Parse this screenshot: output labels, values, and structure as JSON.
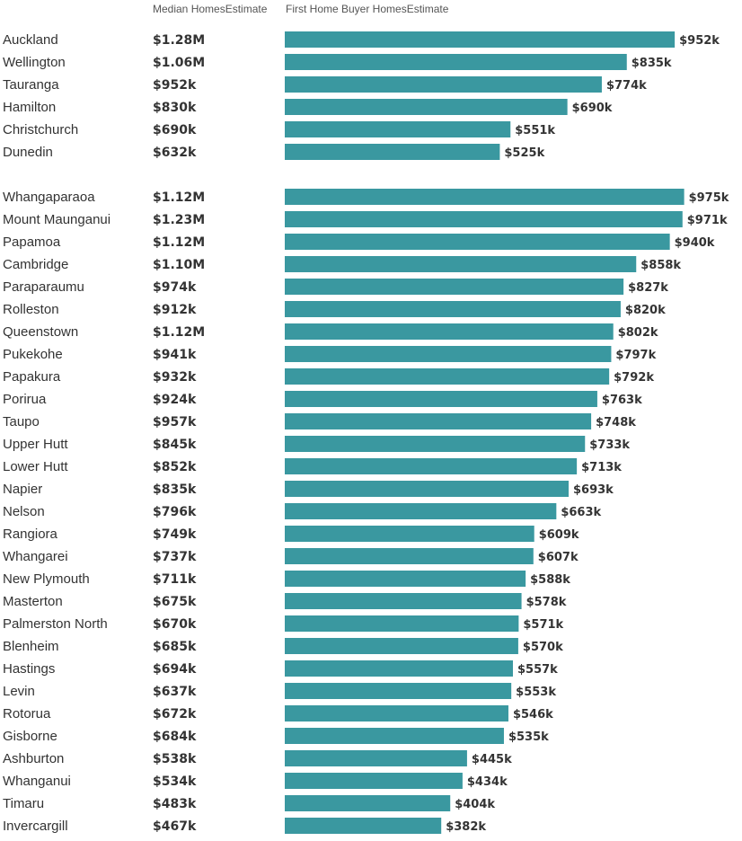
{
  "header": {
    "median_col": "Median HomesEstimate",
    "fhb_col": "First Home Buyer HomesEstimate"
  },
  "colors": {
    "bar": "#3a98a0",
    "text": "#333333"
  },
  "chart_data": {
    "type": "bar",
    "orientation": "horizontal",
    "value_unit": "$k",
    "xlim": [
      0,
      1000
    ],
    "groups": [
      {
        "rows": [
          {
            "city": "Auckland",
            "median": "$1.28M",
            "fhb": 952,
            "fhb_label": "$952k"
          },
          {
            "city": "Wellington",
            "median": "$1.06M",
            "fhb": 835,
            "fhb_label": "$835k"
          },
          {
            "city": "Tauranga",
            "median": "$952k",
            "fhb": 774,
            "fhb_label": "$774k"
          },
          {
            "city": "Hamilton",
            "median": "$830k",
            "fhb": 690,
            "fhb_label": "$690k"
          },
          {
            "city": "Christchurch",
            "median": "$690k",
            "fhb": 551,
            "fhb_label": "$551k"
          },
          {
            "city": "Dunedin",
            "median": "$632k",
            "fhb": 525,
            "fhb_label": "$525k"
          }
        ]
      },
      {
        "rows": [
          {
            "city": "Whangaparaoa",
            "median": "$1.12M",
            "fhb": 975,
            "fhb_label": "$975k"
          },
          {
            "city": "Mount Maunganui",
            "median": "$1.23M",
            "fhb": 971,
            "fhb_label": "$971k"
          },
          {
            "city": "Papamoa",
            "median": "$1.12M",
            "fhb": 940,
            "fhb_label": "$940k"
          },
          {
            "city": "Cambridge",
            "median": "$1.10M",
            "fhb": 858,
            "fhb_label": "$858k"
          },
          {
            "city": "Paraparaumu",
            "median": "$974k",
            "fhb": 827,
            "fhb_label": "$827k"
          },
          {
            "city": "Rolleston",
            "median": "$912k",
            "fhb": 820,
            "fhb_label": "$820k"
          },
          {
            "city": "Queenstown",
            "median": "$1.12M",
            "fhb": 802,
            "fhb_label": "$802k"
          },
          {
            "city": "Pukekohe",
            "median": "$941k",
            "fhb": 797,
            "fhb_label": "$797k"
          },
          {
            "city": "Papakura",
            "median": "$932k",
            "fhb": 792,
            "fhb_label": "$792k"
          },
          {
            "city": "Porirua",
            "median": "$924k",
            "fhb": 763,
            "fhb_label": "$763k"
          },
          {
            "city": "Taupo",
            "median": "$957k",
            "fhb": 748,
            "fhb_label": "$748k"
          },
          {
            "city": "Upper Hutt",
            "median": "$845k",
            "fhb": 733,
            "fhb_label": "$733k"
          },
          {
            "city": "Lower Hutt",
            "median": "$852k",
            "fhb": 713,
            "fhb_label": "$713k"
          },
          {
            "city": "Napier",
            "median": "$835k",
            "fhb": 693,
            "fhb_label": "$693k"
          },
          {
            "city": "Nelson",
            "median": "$796k",
            "fhb": 663,
            "fhb_label": "$663k"
          },
          {
            "city": "Rangiora",
            "median": "$749k",
            "fhb": 609,
            "fhb_label": "$609k"
          },
          {
            "city": "Whangarei",
            "median": "$737k",
            "fhb": 607,
            "fhb_label": "$607k"
          },
          {
            "city": "New Plymouth",
            "median": "$711k",
            "fhb": 588,
            "fhb_label": "$588k"
          },
          {
            "city": "Masterton",
            "median": "$675k",
            "fhb": 578,
            "fhb_label": "$578k"
          },
          {
            "city": "Palmerston North",
            "median": "$670k",
            "fhb": 571,
            "fhb_label": "$571k"
          },
          {
            "city": "Blenheim",
            "median": "$685k",
            "fhb": 570,
            "fhb_label": "$570k"
          },
          {
            "city": "Hastings",
            "median": "$694k",
            "fhb": 557,
            "fhb_label": "$557k"
          },
          {
            "city": "Levin",
            "median": "$637k",
            "fhb": 553,
            "fhb_label": "$553k"
          },
          {
            "city": "Rotorua",
            "median": "$672k",
            "fhb": 546,
            "fhb_label": "$546k"
          },
          {
            "city": "Gisborne",
            "median": "$684k",
            "fhb": 535,
            "fhb_label": "$535k"
          },
          {
            "city": "Ashburton",
            "median": "$538k",
            "fhb": 445,
            "fhb_label": "$445k"
          },
          {
            "city": "Whanganui",
            "median": "$534k",
            "fhb": 434,
            "fhb_label": "$434k"
          },
          {
            "city": "Timaru",
            "median": "$483k",
            "fhb": 404,
            "fhb_label": "$404k"
          },
          {
            "city": "Invercargill",
            "median": "$467k",
            "fhb": 382,
            "fhb_label": "$382k"
          }
        ]
      }
    ]
  }
}
